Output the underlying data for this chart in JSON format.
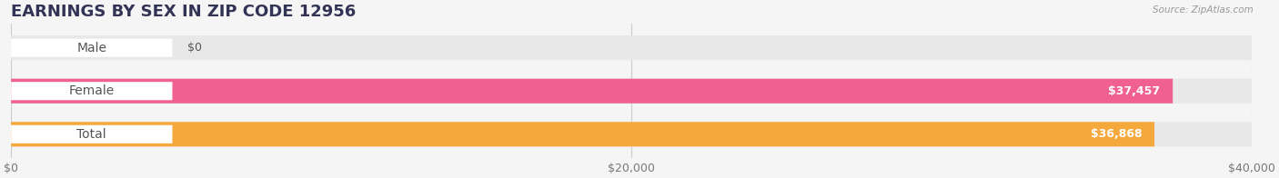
{
  "title": "EARNINGS BY SEX IN ZIP CODE 12956",
  "source": "Source: ZipAtlas.com",
  "categories": [
    "Male",
    "Female",
    "Total"
  ],
  "values": [
    0,
    37457,
    36868
  ],
  "bar_colors": [
    "#a8c8e8",
    "#f06090",
    "#f5a83c"
  ],
  "label_colors": [
    "#a8c8e8",
    "#f06090",
    "#f5a83c"
  ],
  "xlim": [
    0,
    40000
  ],
  "xticks": [
    0,
    20000,
    40000
  ],
  "xtick_labels": [
    "$0",
    "$20,000",
    "$40,000"
  ],
  "value_labels": [
    "$0",
    "$37,457",
    "$36,868"
  ],
  "bg_color": "#f5f5f5",
  "bar_bg_color": "#e8e8e8",
  "title_color": "#333355",
  "label_text_color": "#555555",
  "source_color": "#999999",
  "bar_height": 0.55,
  "title_fontsize": 13,
  "tick_fontsize": 9,
  "label_fontsize": 10,
  "value_fontsize": 9
}
